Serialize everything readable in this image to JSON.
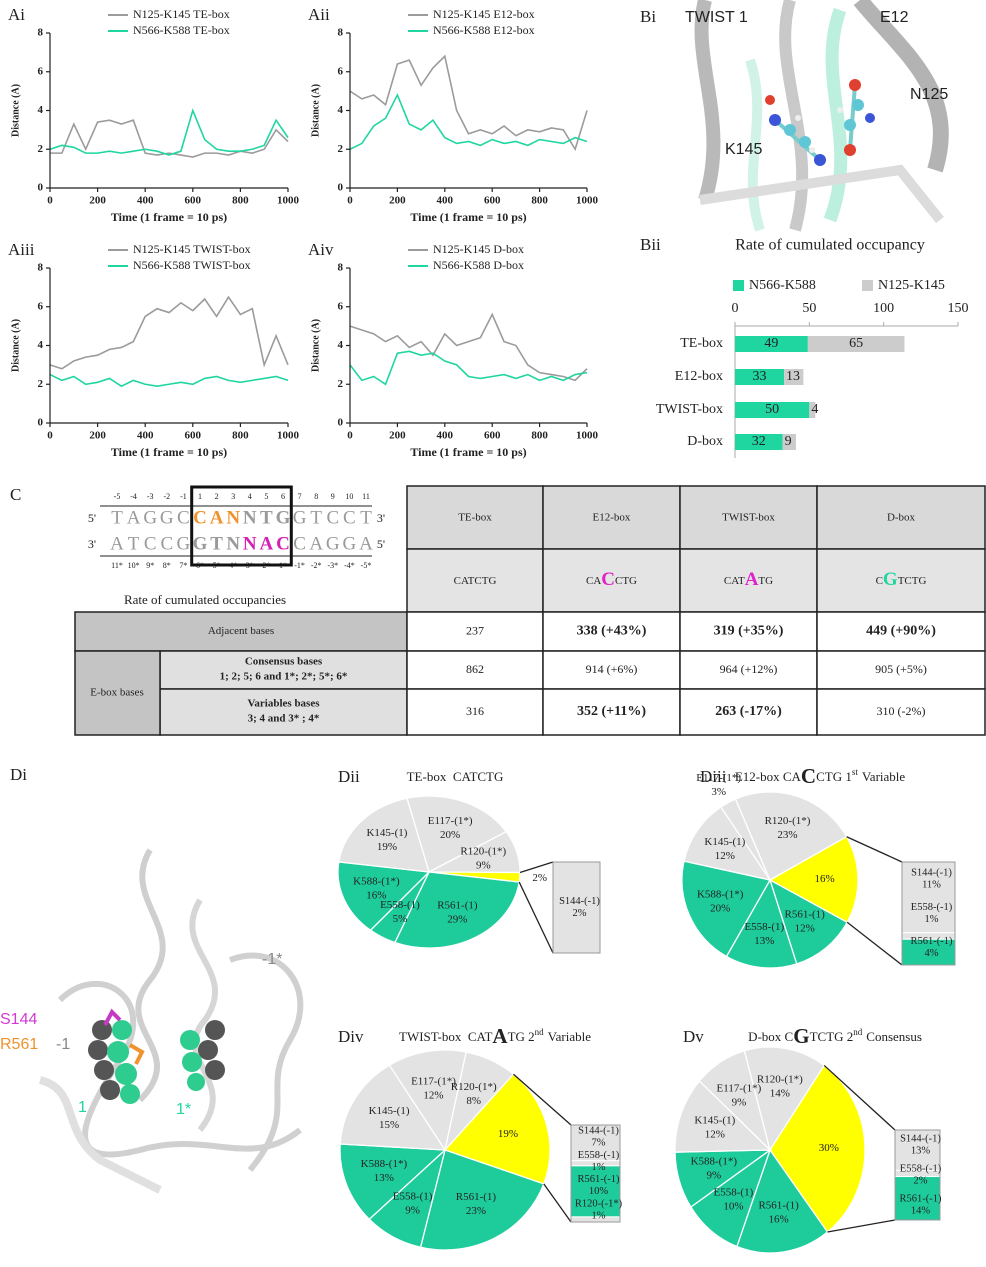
{
  "chart_data": [
    {
      "type": "line",
      "panel": "Ai",
      "x": [
        0,
        50,
        100,
        150,
        200,
        250,
        300,
        350,
        400,
        450,
        500,
        550,
        600,
        650,
        700,
        750,
        800,
        850,
        900,
        950,
        1000
      ],
      "series": [
        {
          "name": "N125-K145 TE-box",
          "color": "#9b9b9b",
          "values": [
            1.8,
            1.8,
            3.3,
            2.0,
            3.4,
            3.5,
            3.3,
            3.5,
            1.8,
            1.7,
            1.8,
            1.7,
            1.6,
            1.8,
            1.8,
            1.7,
            1.9,
            1.8,
            2.0,
            3.0,
            2.4
          ]
        },
        {
          "name": "N566-K588 TE-box",
          "color": "#1fd6a1",
          "values": [
            2.0,
            2.2,
            2.1,
            1.8,
            1.8,
            1.9,
            1.8,
            1.9,
            2.0,
            1.9,
            1.7,
            1.9,
            4.0,
            2.5,
            2.0,
            1.9,
            1.9,
            2.0,
            2.2,
            3.5,
            2.6
          ]
        }
      ],
      "xlim": [
        0,
        1000
      ],
      "xticks": [
        0,
        200,
        400,
        600,
        800,
        1000
      ],
      "ylim": [
        0,
        8
      ],
      "yticks": [
        0,
        2,
        4,
        6,
        8
      ],
      "xlabel": "Time (1 frame = 10 ps)",
      "ylabel": "Distance (A)"
    },
    {
      "type": "line",
      "panel": "Aii",
      "x": [
        0,
        50,
        100,
        150,
        200,
        250,
        300,
        350,
        400,
        450,
        500,
        550,
        600,
        650,
        700,
        750,
        800,
        850,
        900,
        950,
        1000
      ],
      "series": [
        {
          "name": "N125-K145 E12-box",
          "color": "#9b9b9b",
          "values": [
            5.0,
            4.6,
            4.8,
            4.3,
            6.4,
            6.6,
            5.3,
            6.2,
            6.8,
            4.0,
            2.8,
            3.0,
            2.8,
            3.2,
            2.7,
            3.0,
            2.9,
            3.1,
            3.0,
            2.0,
            4.0
          ]
        },
        {
          "name": "N566-K588 E12-box",
          "color": "#1fd6a1",
          "values": [
            2.0,
            2.3,
            3.2,
            3.6,
            4.8,
            3.3,
            3.0,
            3.5,
            2.6,
            2.3,
            2.4,
            2.2,
            2.5,
            2.3,
            2.4,
            2.2,
            2.5,
            2.4,
            2.3,
            2.6,
            2.4
          ]
        }
      ],
      "xlim": [
        0,
        1000
      ],
      "xticks": [
        0,
        200,
        400,
        600,
        800,
        1000
      ],
      "ylim": [
        0,
        8
      ],
      "yticks": [
        0,
        2,
        4,
        6,
        8
      ],
      "xlabel": "Time (1 frame = 10 ps)",
      "ylabel": "Distance (A)"
    },
    {
      "type": "line",
      "panel": "Aiii",
      "x": [
        0,
        50,
        100,
        150,
        200,
        250,
        300,
        350,
        400,
        450,
        500,
        550,
        600,
        650,
        700,
        750,
        800,
        850,
        900,
        950,
        1000
      ],
      "series": [
        {
          "name": "N125-K145 TWIST-box",
          "color": "#9b9b9b",
          "values": [
            3.0,
            2.8,
            3.2,
            3.4,
            3.5,
            3.8,
            3.9,
            4.2,
            5.5,
            5.9,
            5.7,
            6.2,
            5.8,
            6.4,
            5.5,
            6.5,
            5.6,
            5.9,
            3.0,
            4.5,
            3.0
          ]
        },
        {
          "name": "N566-K588 TWIST-box",
          "color": "#1fd6a1",
          "values": [
            2.5,
            2.2,
            2.4,
            2.0,
            2.1,
            2.3,
            1.9,
            2.2,
            2.0,
            1.9,
            2.0,
            2.1,
            2.0,
            2.3,
            2.4,
            2.2,
            2.1,
            2.2,
            2.3,
            2.4,
            2.2
          ]
        }
      ],
      "xlim": [
        0,
        1000
      ],
      "xticks": [
        0,
        200,
        400,
        600,
        800,
        1000
      ],
      "ylim": [
        0,
        8
      ],
      "yticks": [
        0,
        2,
        4,
        6,
        8
      ],
      "xlabel": "Time (1 frame = 10 ps)",
      "ylabel": "Distance (A)"
    },
    {
      "type": "line",
      "panel": "Aiv",
      "x": [
        0,
        50,
        100,
        150,
        200,
        250,
        300,
        350,
        400,
        450,
        500,
        550,
        600,
        650,
        700,
        750,
        800,
        850,
        900,
        950,
        1000
      ],
      "series": [
        {
          "name": "N125-K145 D-box",
          "color": "#9b9b9b",
          "values": [
            5.0,
            4.8,
            4.6,
            4.2,
            4.5,
            3.9,
            4.2,
            3.5,
            4.6,
            4.0,
            4.2,
            4.4,
            5.6,
            4.2,
            4.0,
            3.0,
            2.6,
            2.5,
            2.4,
            2.2,
            2.8
          ]
        },
        {
          "name": "N566-K588 D-box",
          "color": "#1fd6a1",
          "values": [
            3.0,
            2.2,
            2.4,
            2.0,
            3.6,
            3.7,
            3.5,
            3.6,
            3.2,
            3.0,
            2.4,
            2.3,
            2.4,
            2.5,
            2.3,
            2.5,
            2.2,
            2.4,
            2.2,
            2.5,
            2.6
          ]
        }
      ],
      "xlim": [
        0,
        1000
      ],
      "xticks": [
        0,
        200,
        400,
        600,
        800,
        1000
      ],
      "ylim": [
        0,
        8
      ],
      "yticks": [
        0,
        2,
        4,
        6,
        8
      ],
      "xlabel": "Time (1 frame = 10 ps)",
      "ylabel": "Distance (A)"
    },
    {
      "type": "bar",
      "orientation": "horizontal",
      "stacked": true,
      "panel": "Bii",
      "title": "Rate of cumulated occupancy",
      "categories": [
        "TE-box",
        "E12-box",
        "TWIST-box",
        "D-box"
      ],
      "series": [
        {
          "name": "N566-K588",
          "color": "#1fd6a1",
          "values": [
            49,
            33,
            50,
            32
          ]
        },
        {
          "name": "N125-K145",
          "color": "#cccccc",
          "values": [
            65,
            13,
            4,
            9
          ]
        }
      ],
      "xlim": [
        0,
        150
      ],
      "xticks": [
        0,
        50,
        100,
        150
      ]
    },
    {
      "type": "pie",
      "panel": "Dii",
      "title": [
        "TE-box  CATCTG"
      ],
      "categories": [
        "E117-(1*)",
        "R120-(1*)",
        null,
        "R561-(1)",
        "E558-(1)",
        "K588-(1*)",
        "K145-(1)"
      ],
      "values": [
        20,
        9,
        2,
        29,
        5,
        16,
        19
      ],
      "value_labels": [
        "20%",
        "9%",
        "2%",
        "29%",
        "5%",
        "16%",
        "19%"
      ],
      "colors": [
        "#e3e3e3",
        "#e3e3e3",
        "#ffff00",
        "#1ecb9b",
        "#1ecb9b",
        "#1ecb9b",
        "#e3e3e3"
      ],
      "breakdown": {
        "categories": [
          "S144-(-1)"
        ],
        "values": [
          2
        ],
        "value_labels": [
          "2%"
        ],
        "colors": [
          "#e3e3e3"
        ]
      }
    },
    {
      "type": "pie",
      "panel": "Diii",
      "title": [
        "E12-box CA",
        "C",
        "CTG 1",
        "st",
        "Variable"
      ],
      "categories": [
        "E117-(1*)",
        "R120-(1*)",
        null,
        "R561-(1)",
        "E558-(1)",
        "K588-(1*)",
        "K145-(1)"
      ],
      "values": [
        3,
        23,
        16,
        12,
        13,
        20,
        12
      ],
      "value_labels": [
        "3%",
        "23%",
        "16%",
        "12%",
        "13%",
        "20%",
        "12%"
      ],
      "colors": [
        "#e3e3e3",
        "#e3e3e3",
        "#ffff00",
        "#1ecb9b",
        "#1ecb9b",
        "#1ecb9b",
        "#e3e3e3"
      ],
      "breakdown": {
        "categories": [
          "S144-(-1)",
          "E558-(-1)",
          "R561-(-1)"
        ],
        "values": [
          11,
          1,
          4
        ],
        "value_labels": [
          "11%",
          "1%",
          "4%"
        ],
        "colors": [
          "#e3e3e3",
          "#e3e3e3",
          "#1ecb9b"
        ]
      }
    },
    {
      "type": "pie",
      "panel": "Div",
      "title": [
        "TWIST-box  CAT",
        "A",
        "TG 2",
        "nd",
        "Variable"
      ],
      "categories": [
        "E117-(1*)",
        "R120-(1*)",
        null,
        "R561-(1)",
        "E558-(1)",
        "K588-(1*)",
        "K145-(1)"
      ],
      "values": [
        12,
        8,
        19,
        23,
        9,
        13,
        15
      ],
      "value_labels": [
        "12%",
        "8%",
        "19%",
        "23%",
        "9%",
        "13%",
        "15%"
      ],
      "colors": [
        "#e3e3e3",
        "#e3e3e3",
        "#ffff00",
        "#1ecb9b",
        "#1ecb9b",
        "#1ecb9b",
        "#e3e3e3"
      ],
      "breakdown": {
        "categories": [
          "S144-(-1)",
          "E558-(-1)",
          "R561-(-1)",
          "R120-(-1*)"
        ],
        "values": [
          7,
          1,
          10,
          1
        ],
        "value_labels": [
          "7%",
          "1%",
          "10%",
          "1%"
        ],
        "colors": [
          "#e3e3e3",
          "#e3e3e3",
          "#1ecb9b",
          "#e3e3e3"
        ]
      }
    },
    {
      "type": "pie",
      "panel": "Dv",
      "title": [
        "D-box C",
        "G",
        "TCTG 2",
        "nd",
        "Consensus"
      ],
      "categories": [
        "E117-(1*)",
        "R120-(1*)",
        null,
        "R561-(1)",
        "E558-(1)",
        "K588-(1*)",
        "K145-(1)"
      ],
      "values": [
        9,
        14,
        30,
        16,
        10,
        9,
        12
      ],
      "value_labels": [
        "9%",
        "14%",
        "30%",
        "16%",
        "10%",
        "9%",
        "12%"
      ],
      "colors": [
        "#e3e3e3",
        "#e3e3e3",
        "#ffff00",
        "#1ecb9b",
        "#1ecb9b",
        "#1ecb9b",
        "#e3e3e3"
      ],
      "breakdown": {
        "categories": [
          "S144-(-1)",
          "E558-(-1)",
          "R561-(-1)"
        ],
        "values": [
          13,
          2,
          14
        ],
        "value_labels": [
          "13%",
          "2%",
          "14%"
        ],
        "colors": [
          "#e3e3e3",
          "#e3e3e3",
          "#1ecb9b"
        ]
      }
    }
  ],
  "structure_b": {
    "panel": "Bi",
    "labels": [
      "TWIST 1",
      "E12",
      "N125",
      "K145"
    ]
  },
  "structure_d": {
    "panel": "Di",
    "labels": [
      "S144",
      "R561",
      "-1",
      "-1*",
      "1",
      "1*"
    ]
  },
  "sequence": {
    "panel": "C",
    "top_numbers": [
      "-5",
      "-4",
      "-3",
      "-2",
      "-1",
      "1",
      "2",
      "3",
      "4",
      "5",
      "6",
      "7",
      "8",
      "9",
      "10",
      "11"
    ],
    "top_strand": {
      "start": "5'",
      "end": "3'",
      "pieces": [
        {
          "text": "TAGGC",
          "color": "#9a9a9a"
        },
        {
          "text": "CAN",
          "color": "#f0922e"
        },
        {
          "text": "NTG",
          "color": "#9a9a9a"
        },
        {
          "text": "GTCCT",
          "color": "#9a9a9a"
        }
      ]
    },
    "bottom_strand": {
      "start": "3'",
      "end": "5'",
      "pieces": [
        {
          "text": "ATCCG",
          "color": "#9a9a9a"
        },
        {
          "text": "GTN",
          "color": "#9a9a9a"
        },
        {
          "text": "NAC",
          "color": "#d420b4"
        },
        {
          "text": "CAGGA",
          "color": "#9a9a9a"
        }
      ]
    },
    "bottom_numbers": [
      "11*",
      "10*",
      "9*",
      "8*",
      "7*",
      "6*",
      "5*",
      "4*",
      "3*",
      "2*",
      "1*",
      "-1*",
      "-2*",
      "-3*",
      "-4*",
      "-5*"
    ],
    "caption": "Rate of cumulated occupancies"
  },
  "table": {
    "columns": [
      "TE-box",
      "E12-box",
      "TWIST-box",
      "D-box"
    ],
    "sequences": [
      [
        "CATCTG"
      ],
      [
        "CA",
        "C",
        "CTG"
      ],
      [
        "CAT",
        "A",
        "TG"
      ],
      [
        "C",
        "G",
        "TCTG"
      ]
    ],
    "highlight_colors": [
      null,
      "#e020c8",
      "#e020c8",
      "#1fd6a1"
    ],
    "group_label": "E-box bases",
    "rows": [
      {
        "label": "Adjacent bases",
        "cells": [
          "237",
          "338 (+43%)",
          "319 (+35%)",
          "449 (+90%)"
        ],
        "bold": [
          false,
          true,
          true,
          true
        ]
      },
      {
        "label": "Consensus bases",
        "sublabel": "1; 2; 5; 6 and 1*; 2*; 5*; 6*",
        "cells": [
          "862",
          "914 (+6%)",
          "964 (+12%)",
          "905 (+5%)"
        ],
        "bold": [
          false,
          false,
          false,
          false
        ]
      },
      {
        "label": "Variables bases",
        "sublabel": "3; 4 and 3* ; 4*",
        "cells": [
          "316",
          "352 (+11%)",
          "263 (-17%)",
          "310 (-2%)"
        ],
        "bold": [
          false,
          true,
          true,
          false
        ]
      }
    ]
  }
}
